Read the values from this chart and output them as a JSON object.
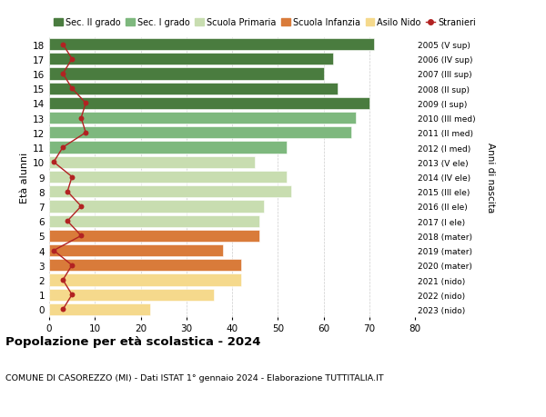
{
  "ages": [
    18,
    17,
    16,
    15,
    14,
    13,
    12,
    11,
    10,
    9,
    8,
    7,
    6,
    5,
    4,
    3,
    2,
    1,
    0
  ],
  "bar_values": [
    71,
    62,
    60,
    63,
    70,
    67,
    66,
    52,
    45,
    52,
    53,
    47,
    46,
    46,
    38,
    42,
    42,
    36,
    22
  ],
  "stranieri_values": [
    3,
    5,
    3,
    5,
    8,
    7,
    8,
    3,
    1,
    5,
    4,
    7,
    4,
    7,
    1,
    5,
    3,
    5,
    3
  ],
  "right_labels": [
    "2005 (V sup)",
    "2006 (IV sup)",
    "2007 (III sup)",
    "2008 (II sup)",
    "2009 (I sup)",
    "2010 (III med)",
    "2011 (II med)",
    "2012 (I med)",
    "2013 (V ele)",
    "2014 (IV ele)",
    "2015 (III ele)",
    "2016 (II ele)",
    "2017 (I ele)",
    "2018 (mater)",
    "2019 (mater)",
    "2020 (mater)",
    "2021 (nido)",
    "2022 (nido)",
    "2023 (nido)"
  ],
  "bar_colors": [
    "#4a7c3f",
    "#4a7c3f",
    "#4a7c3f",
    "#4a7c3f",
    "#4a7c3f",
    "#7eb87e",
    "#7eb87e",
    "#7eb87e",
    "#c8ddb0",
    "#c8ddb0",
    "#c8ddb0",
    "#c8ddb0",
    "#c8ddb0",
    "#d97b3a",
    "#d97b3a",
    "#d97b3a",
    "#f5d98c",
    "#f5d98c",
    "#f5d98c"
  ],
  "legend_labels": [
    "Sec. II grado",
    "Sec. I grado",
    "Scuola Primaria",
    "Scuola Infanzia",
    "Asilo Nido",
    "Stranieri"
  ],
  "legend_colors": [
    "#4a7c3f",
    "#7eb87e",
    "#c8ddb0",
    "#d97b3a",
    "#f5d98c",
    "#b22222"
  ],
  "ylabel": "Età alunni",
  "right_ylabel": "Anni di nascita",
  "title": "Popolazione per età scolastica - 2024",
  "subtitle": "COMUNE DI CASOREZZO (MI) - Dati ISTAT 1° gennaio 2024 - Elaborazione TUTTITALIA.IT",
  "xlim": [
    0,
    80
  ],
  "xticks": [
    0,
    10,
    20,
    30,
    40,
    50,
    60,
    70,
    80
  ],
  "background_color": "#ffffff",
  "grid_color": "#cccccc",
  "stranieri_line_color": "#b22222",
  "stranieri_marker_color": "#b22222"
}
